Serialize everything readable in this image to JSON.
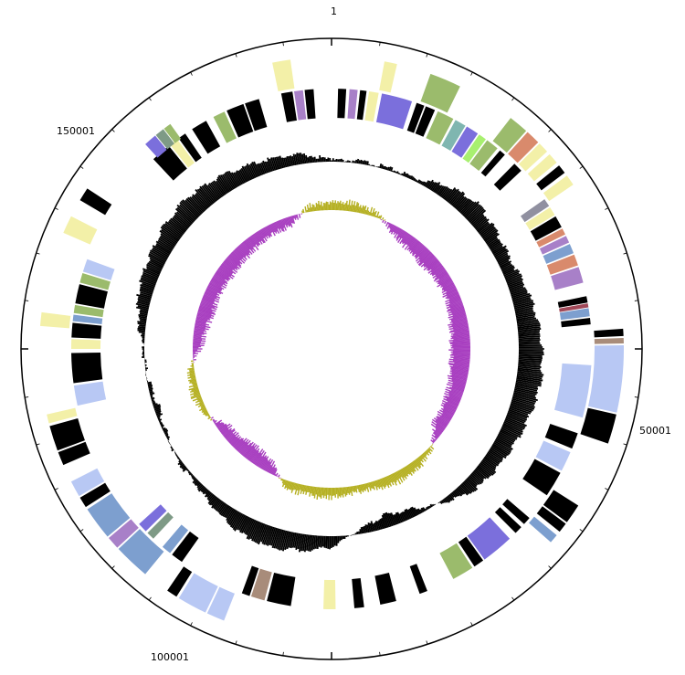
{
  "position_labels": {
    "start": "1",
    "p50001": "50001",
    "p100001": "100001",
    "p150001": "150001"
  },
  "genome": {
    "total_length": 200000
  },
  "colors": {
    "black": "#000000",
    "olive_gc_content": "#b5b022",
    "magenta_gc_skew": "#a83fc0",
    "green": "#9bbb6c",
    "purple": "#7b6fdc",
    "pale_yellow": "#f3f0a8",
    "light_blue": "#b8c8f4",
    "steel_blue": "#7d9fcf",
    "teal": "#7fb6b0",
    "lime": "#a8f070",
    "salmon": "#d98a6c",
    "brown": "#a88c7a",
    "grey_green": "#7e9a86",
    "violet": "#a880c8",
    "maroon": "#a04858",
    "grey": "#9090a0"
  },
  "tracks": {
    "outer_forward": [
      {
        "s": 5800,
        "e": 7200,
        "c": "pale_yellow"
      },
      {
        "s": 11000,
        "e": 14500,
        "c": "green"
      },
      {
        "s": 21000,
        "e": 23200,
        "c": "green"
      },
      {
        "s": 23400,
        "e": 25000,
        "c": "salmon"
      },
      {
        "s": 25200,
        "e": 26400,
        "c": "pale_yellow"
      },
      {
        "s": 26800,
        "e": 28000,
        "c": "pale_yellow"
      },
      {
        "s": 28400,
        "e": 29400,
        "c": "black"
      },
      {
        "s": 29800,
        "e": 31000,
        "c": "pale_yellow"
      },
      {
        "s": 47800,
        "e": 48600,
        "c": "black"
      },
      {
        "s": 48800,
        "e": 49400,
        "c": "brown"
      },
      {
        "s": 49600,
        "e": 57000,
        "c": "light_blue"
      },
      {
        "s": 57200,
        "e": 60500,
        "c": "black"
      },
      {
        "s": 68000,
        "e": 70200,
        "c": "black"
      },
      {
        "s": 70400,
        "e": 71500,
        "c": "black"
      },
      {
        "s": 72000,
        "e": 73000,
        "c": "steel_blue"
      },
      {
        "s": 112000,
        "e": 114000,
        "c": "light_blue"
      },
      {
        "s": 114200,
        "e": 117500,
        "c": "light_blue"
      },
      {
        "s": 117800,
        "e": 119000,
        "c": "black"
      },
      {
        "s": 122000,
        "e": 126000,
        "c": "steel_blue"
      },
      {
        "s": 126200,
        "e": 127600,
        "c": "violet"
      },
      {
        "s": 127800,
        "e": 131500,
        "c": "steel_blue"
      },
      {
        "s": 131800,
        "e": 133000,
        "c": "black"
      },
      {
        "s": 133200,
        "e": 135000,
        "c": "light_blue"
      },
      {
        "s": 137000,
        "e": 138500,
        "c": "black"
      },
      {
        "s": 138700,
        "e": 141500,
        "c": "black"
      },
      {
        "s": 141800,
        "e": 142800,
        "c": "pale_yellow"
      },
      {
        "s": 152500,
        "e": 154000,
        "c": "pale_yellow"
      },
      {
        "s": 163000,
        "e": 165000,
        "c": "pale_yellow"
      },
      {
        "s": 167000,
        "e": 168500,
        "c": "black"
      },
      {
        "s": 193500,
        "e": 195500,
        "c": "pale_yellow"
      }
    ],
    "inner_reverse": [
      {
        "s": 800,
        "e": 1800,
        "c": "black"
      },
      {
        "s": 2200,
        "e": 3200,
        "c": "violet"
      },
      {
        "s": 3500,
        "e": 4300,
        "c": "black"
      },
      {
        "s": 4600,
        "e": 5800,
        "c": "pale_yellow"
      },
      {
        "s": 6200,
        "e": 10000,
        "c": "purple"
      },
      {
        "s": 10600,
        "e": 11600,
        "c": "black"
      },
      {
        "s": 11800,
        "e": 13000,
        "c": "black"
      },
      {
        "s": 13400,
        "e": 15500,
        "c": "green"
      },
      {
        "s": 15800,
        "e": 17200,
        "c": "teal"
      },
      {
        "s": 17400,
        "e": 19000,
        "c": "purple"
      },
      {
        "s": 19200,
        "e": 20200,
        "c": "lime"
      },
      {
        "s": 20400,
        "e": 22000,
        "c": "green"
      },
      {
        "s": 22400,
        "e": 23200,
        "c": "black"
      },
      {
        "s": 24800,
        "e": 26000,
        "c": "black"
      },
      {
        "s": 30500,
        "e": 31500,
        "c": "grey"
      },
      {
        "s": 31700,
        "e": 32800,
        "c": "pale_yellow"
      },
      {
        "s": 33000,
        "e": 34500,
        "c": "black"
      },
      {
        "s": 34700,
        "e": 35500,
        "c": "salmon"
      },
      {
        "s": 35700,
        "e": 36600,
        "c": "violet"
      },
      {
        "s": 36800,
        "e": 38000,
        "c": "steel_blue"
      },
      {
        "s": 38200,
        "e": 39600,
        "c": "salmon"
      },
      {
        "s": 39800,
        "e": 41800,
        "c": "violet"
      },
      {
        "s": 43500,
        "e": 44300,
        "c": "black"
      },
      {
        "s": 44400,
        "e": 44900,
        "c": "maroon"
      },
      {
        "s": 45000,
        "e": 46000,
        "c": "steel_blue"
      },
      {
        "s": 46200,
        "e": 47000,
        "c": "black"
      },
      {
        "s": 52000,
        "e": 58500,
        "c": "light_blue"
      },
      {
        "s": 60500,
        "e": 62500,
        "c": "black"
      },
      {
        "s": 63000,
        "e": 65500,
        "c": "light_blue"
      },
      {
        "s": 65800,
        "e": 69000,
        "c": "black"
      },
      {
        "s": 72500,
        "e": 73500,
        "c": "black"
      },
      {
        "s": 74000,
        "e": 75000,
        "c": "black"
      },
      {
        "s": 76000,
        "e": 80000,
        "c": "purple"
      },
      {
        "s": 80200,
        "e": 81500,
        "c": "black"
      },
      {
        "s": 81800,
        "e": 84500,
        "c": "green"
      },
      {
        "s": 88000,
        "e": 89000,
        "c": "black"
      },
      {
        "s": 92000,
        "e": 94000,
        "c": "black"
      },
      {
        "s": 96000,
        "e": 97200,
        "c": "black"
      },
      {
        "s": 99500,
        "e": 101000,
        "c": "pale_yellow"
      },
      {
        "s": 105000,
        "e": 108000,
        "c": "black"
      },
      {
        "s": 108300,
        "e": 110000,
        "c": "brown"
      },
      {
        "s": 110200,
        "e": 111200,
        "c": "black"
      },
      {
        "s": 119500,
        "e": 121000,
        "c": "black"
      },
      {
        "s": 121300,
        "e": 122500,
        "c": "steel_blue"
      },
      {
        "s": 124000,
        "e": 125000,
        "c": "grey_green"
      },
      {
        "s": 125300,
        "e": 126500,
        "c": "purple"
      },
      {
        "s": 143000,
        "e": 145500,
        "c": "light_blue"
      },
      {
        "s": 145800,
        "e": 149500,
        "c": "black"
      },
      {
        "s": 150000,
        "e": 151200,
        "c": "pale_yellow"
      },
      {
        "s": 151400,
        "e": 153200,
        "c": "black"
      },
      {
        "s": 153400,
        "e": 154200,
        "c": "steel_blue"
      },
      {
        "s": 154400,
        "e": 155400,
        "c": "green"
      },
      {
        "s": 155600,
        "e": 158000,
        "c": "black"
      },
      {
        "s": 158200,
        "e": 159400,
        "c": "green"
      },
      {
        "s": 159600,
        "e": 161200,
        "c": "light_blue"
      },
      {
        "s": 176000,
        "e": 178500,
        "c": "black"
      },
      {
        "s": 178700,
        "e": 179800,
        "c": "pale_yellow"
      },
      {
        "s": 180000,
        "e": 181000,
        "c": "black"
      },
      {
        "s": 182000,
        "e": 184000,
        "c": "black"
      },
      {
        "s": 185000,
        "e": 186500,
        "c": "green"
      },
      {
        "s": 186800,
        "e": 189000,
        "c": "black"
      },
      {
        "s": 189200,
        "e": 191000,
        "c": "black"
      },
      {
        "s": 193800,
        "e": 195200,
        "c": "black"
      },
      {
        "s": 195400,
        "e": 196500,
        "c": "violet"
      },
      {
        "s": 196700,
        "e": 197800,
        "c": "black"
      }
    ],
    "inner_blocks_left": [
      {
        "s": 176500,
        "e": 178000,
        "c": "purple"
      },
      {
        "s": 178100,
        "e": 179200,
        "c": "grey_green"
      },
      {
        "s": 179300,
        "e": 180200,
        "c": "green"
      }
    ]
  },
  "gc_content": {
    "profile": [
      0.05,
      0.1,
      0.08,
      0.12,
      0.5,
      0.7,
      0.55,
      0.45,
      0.6,
      0.75,
      0.85,
      0.9,
      0.8,
      0.7,
      0.6,
      0.5,
      0.1,
      -0.3,
      -0.5,
      -0.2,
      0.4,
      0.6,
      0.75,
      0.65,
      0.4,
      0.15,
      0.1,
      -0.1,
      -0.2,
      -0.05,
      0.05,
      0.3,
      0.55,
      0.6,
      0.75,
      0.8,
      0.7,
      0.55,
      0.45,
      0.35
    ]
  },
  "gc_skew": {
    "profile": [
      0.3,
      0.35,
      0.2,
      -0.3,
      -0.5,
      -0.6,
      -0.55,
      -0.5,
      -0.6,
      -0.7,
      -0.75,
      -0.7,
      -0.6,
      -0.55,
      -0.5,
      0.1,
      0.35,
      0.4,
      0.3,
      0.25,
      0.4,
      0.35,
      0.3,
      -0.4,
      -0.6,
      -0.5,
      -0.4,
      0.2,
      0.3,
      0.25,
      -0.3,
      -0.5,
      -0.6,
      -0.55,
      -0.6,
      -0.55,
      -0.5,
      -0.4,
      -0.35,
      0.25
    ]
  }
}
